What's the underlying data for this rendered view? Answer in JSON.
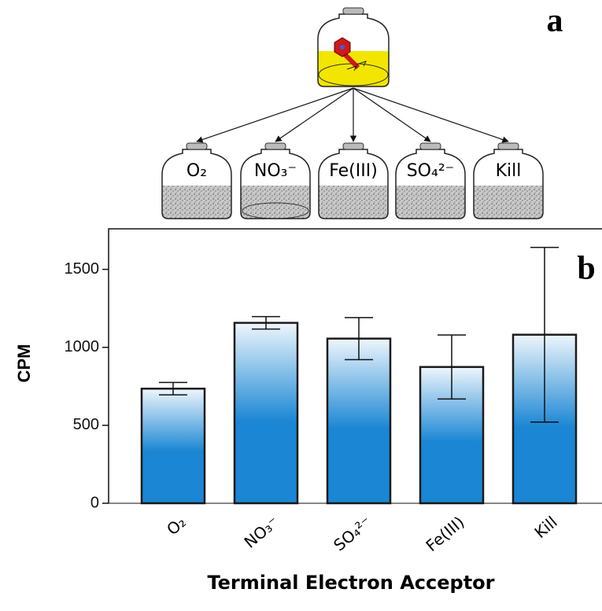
{
  "panel_a": {
    "label": "a",
    "bottles": [
      "O₂",
      "NO₃⁻",
      "Fe(III)",
      "SO₄²⁻",
      "Kill"
    ]
  },
  "chart_data": {
    "type": "bar",
    "panel_label": "b",
    "x_label": "Terminal Electron Acceptor",
    "y_label": "CPM",
    "categories": [
      "O₂",
      "NO₃⁻",
      "SO₄²⁻",
      "Fe(III)",
      "Kill"
    ],
    "values": [
      735,
      1157,
      1056,
      874,
      1081
    ],
    "errors": [
      40,
      40,
      135,
      205,
      560
    ],
    "color": "#1a86d4",
    "ylim": [
      0,
      1760
    ],
    "yticks": [
      0,
      500,
      1000,
      1500
    ]
  }
}
